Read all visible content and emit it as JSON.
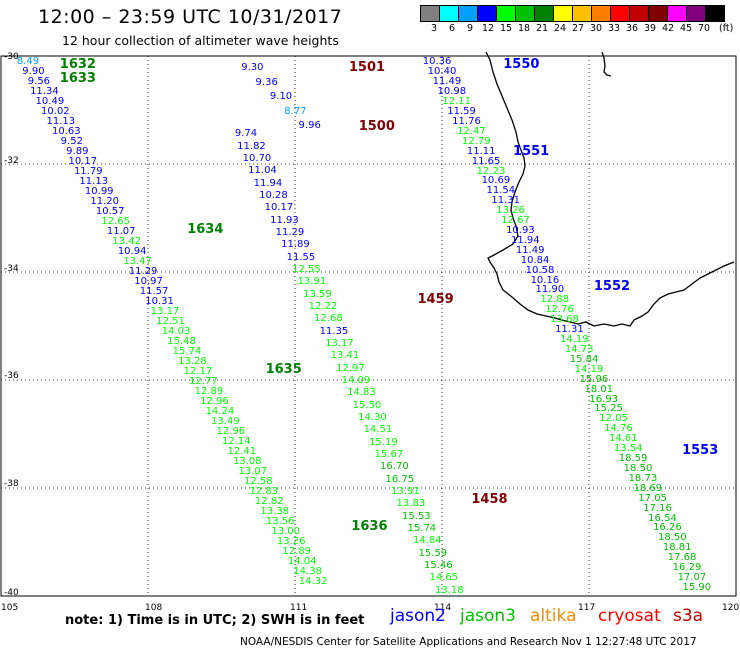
{
  "header": {
    "title": "12:00 – 23:59 UTC 10/31/2017",
    "subtitle": "12 hour collection of altimeter wave heights"
  },
  "legend": {
    "unit": "(ft)",
    "labels": [
      "3",
      "6",
      "9",
      "12",
      "15",
      "18",
      "21",
      "24",
      "27",
      "30",
      "33",
      "36",
      "39",
      "42",
      "45",
      "70"
    ],
    "colors": [
      "#808080",
      "#00ffff",
      "#00a0ff",
      "#0000ff",
      "#00ff00",
      "#00c000",
      "#008000",
      "#ffff00",
      "#ffc000",
      "#ff8000",
      "#ff0000",
      "#c00000",
      "#800000",
      "#ff00ff",
      "#800080",
      "#000000"
    ]
  },
  "axes": {
    "lat_labels": [
      "-30",
      "-32",
      "-34",
      "-36",
      "-38",
      "-40"
    ],
    "lon_labels": [
      "105",
      "108",
      "111",
      "114",
      "117",
      "120"
    ]
  },
  "note": "note:  1) Time is in UTC;  2) SWH is in feet",
  "satellites": [
    {
      "name": "jason2",
      "color": "#0000ff"
    },
    {
      "name": "jason3",
      "color": "#00c000"
    },
    {
      "name": "altika",
      "color": "#ff8c00"
    },
    {
      "name": "cryosat",
      "color": "#ff0000"
    },
    {
      "name": "s3a",
      "color": "#c00000"
    }
  ],
  "footer": "NOAA/NESDIS Center for Satellite Applications and Research    Nov  1 12:27:48 UTC 2017",
  "map_data": {
    "region": {
      "lon": [
        105,
        120
      ],
      "lat": [
        -40,
        -30
      ]
    },
    "orbit_labels": [
      {
        "label": "1632",
        "lon": 106.2,
        "lat": -30.15,
        "color": "#008000"
      },
      {
        "label": "1633",
        "lon": 106.2,
        "lat": -30.4,
        "color": "#008000"
      },
      {
        "label": "1634",
        "lon": 108.8,
        "lat": -33.2,
        "color": "#008000"
      },
      {
        "label": "1635",
        "lon": 110.4,
        "lat": -35.8,
        "color": "#008000"
      },
      {
        "label": "1636",
        "lon": 112.15,
        "lat": -38.7,
        "color": "#008000"
      },
      {
        "label": "1501",
        "lon": 112.1,
        "lat": -30.2,
        "color": "#800000"
      },
      {
        "label": "1500",
        "lon": 112.3,
        "lat": -31.3,
        "color": "#800000"
      },
      {
        "label": "1459",
        "lon": 113.5,
        "lat": -34.5,
        "color": "#800000"
      },
      {
        "label": "1458",
        "lon": 114.6,
        "lat": -38.2,
        "color": "#800000"
      },
      {
        "label": "1550",
        "lon": 115.25,
        "lat": -30.15,
        "color": "#0000ff"
      },
      {
        "label": "1551",
        "lon": 115.45,
        "lat": -31.75,
        "color": "#0000ff"
      },
      {
        "label": "1552",
        "lon": 117.1,
        "lat": -34.25,
        "color": "#0000ff"
      },
      {
        "label": "1553",
        "lon": 118.9,
        "lat": -37.3,
        "color": "#0000ff"
      }
    ],
    "tracks": [
      {
        "id": "jason3-1632",
        "start": [
          105.55,
          -30.12
        ],
        "end": [
          111.37,
          -39.74
        ],
        "values": [
          "8.49",
          "9.90",
          "9.56",
          "11.34",
          "10.49",
          "10.02",
          "11.13",
          "10.63",
          "9.52",
          "9.89",
          "10.17",
          "11.79",
          "11.13",
          "10.99",
          "11.20",
          "10.57",
          "12.65",
          "11.07",
          "13.42",
          "10.94",
          "13.47",
          "11.29",
          "10.97",
          "11.57",
          "10.31",
          "13.17",
          "12.51",
          "14.03",
          "15.48",
          "15.74",
          "13.28",
          "12.17",
          "12.77",
          "12.89",
          "12.96",
          "14.24",
          "13.49",
          "12.96",
          "12.14",
          "12.41",
          "13.08",
          "13.07",
          "12.58",
          "12.83",
          "12.82",
          "13.38",
          "13.56",
          "13.00",
          "13.26",
          "12.89",
          "14.04",
          "14.38",
          "14.32"
        ],
        "colors": [
          "#00a0ff",
          "#0000ff",
          "#0000ff",
          "#0000ff",
          "#0000ff",
          "#0000ff",
          "#0000ff",
          "#0000ff",
          "#0000ff",
          "#0000ff",
          "#0000ff",
          "#0000ff",
          "#0000ff",
          "#0000ff",
          "#0000ff",
          "#0000ff",
          "#00ff00",
          "#0000ff",
          "#00ff00",
          "#0000ff",
          "#00ff00",
          "#0000ff",
          "#0000ff",
          "#0000ff",
          "#0000ff",
          "#00ff00",
          "#00ff00",
          "#00ff00",
          "#00ff00",
          "#00ff00",
          "#00ff00",
          "#00ff00",
          "#00ff00",
          "#00ff00",
          "#00ff00",
          "#00ff00",
          "#00ff00",
          "#00ff00",
          "#00ff00",
          "#00ff00",
          "#00ff00",
          "#00ff00",
          "#00ff00",
          "#00ff00",
          "#00ff00",
          "#00ff00",
          "#00ff00",
          "#00ff00",
          "#00ff00",
          "#00ff00",
          "#00ff00",
          "#00ff00",
          "#00ff00"
        ]
      },
      {
        "id": "cryosat-1501",
        "start": [
          110.13,
          -30.23
        ],
        "end": [
          111.3,
          -31.3
        ],
        "values": [
          "9.30",
          "9.36",
          "9.10",
          "8.77",
          "9.96"
        ],
        "colors": [
          "#0000ff",
          "#0000ff",
          "#0000ff",
          "#00a0ff",
          "#0000ff"
        ]
      },
      {
        "id": "cryosat-1500",
        "start": [
          110.0,
          -31.45
        ],
        "end": [
          114.15,
          -39.9
        ],
        "values": [
          "9.74",
          "11.82",
          "10.70",
          "11.04",
          "11.94",
          "10.28",
          "10.17",
          "11.93",
          "11.29",
          "11.89",
          "11.55",
          "12.55",
          "13.91",
          "13.59",
          "12.22",
          "12.68",
          "11.35",
          "13.17",
          "13.41",
          "12.97",
          "14.09",
          "14.83",
          "15.50",
          "14.30",
          "14.51",
          "15.19",
          "15.67",
          "16.70",
          "16.75",
          "13.91",
          "13.83",
          "15.53",
          "15.74",
          "14.84",
          "15.59",
          "15.46",
          "14.65",
          "13.18"
        ],
        "colors": [
          "#0000ff",
          "#0000ff",
          "#0000ff",
          "#0000ff",
          "#0000ff",
          "#0000ff",
          "#0000ff",
          "#0000ff",
          "#0000ff",
          "#0000ff",
          "#0000ff",
          "#00ff00",
          "#00ff00",
          "#00ff00",
          "#00ff00",
          "#00ff00",
          "#0000ff",
          "#00ff00",
          "#00ff00",
          "#00ff00",
          "#00ff00",
          "#00ff00",
          "#00ff00",
          "#00ff00",
          "#00ff00",
          "#00ff00",
          "#00ff00",
          "#00c000",
          "#00c000",
          "#00ff00",
          "#00ff00",
          "#00c000",
          "#00c000",
          "#00ff00",
          "#00c000",
          "#00c000",
          "#00ff00",
          "#00ff00"
        ]
      },
      {
        "id": "jason2-1550",
        "start": [
          113.9,
          -30.12
        ],
        "end": [
          119.2,
          -39.85
        ],
        "values": [
          "10.36",
          "10.40",
          "11.49",
          "10.98",
          "12.11",
          "11.59",
          "11.76",
          "12.47",
          "12.79",
          "11.11",
          "11.65",
          "12.23",
          "10.69",
          "11.54",
          "11.31",
          "13.26",
          "12.67",
          "10.93",
          "11.94",
          "11.49",
          "10.84",
          "10.58",
          "10.16",
          "11.90",
          "12.88",
          "12.76",
          "13.68",
          "11.31",
          "14.19",
          "14.73",
          "15.84",
          "14.19",
          "15.96",
          "18.01",
          "16.93",
          "15.25",
          "12.05",
          "14.76",
          "14.61",
          "13.54",
          "18.59",
          "18.50",
          "18.73",
          "18.69",
          "17.05",
          "17.16",
          "16.54",
          "16.26",
          "18.50",
          "18.81",
          "17.68",
          "16.29",
          "17.07",
          "15.90"
        ],
        "colors": [
          "#0000ff",
          "#0000ff",
          "#0000ff",
          "#0000ff",
          "#00ff00",
          "#0000ff",
          "#0000ff",
          "#00ff00",
          "#00ff00",
          "#0000ff",
          "#0000ff",
          "#00ff00",
          "#0000ff",
          "#0000ff",
          "#0000ff",
          "#00ff00",
          "#00ff00",
          "#0000ff",
          "#0000ff",
          "#0000ff",
          "#0000ff",
          "#0000ff",
          "#0000ff",
          "#0000ff",
          "#00ff00",
          "#00ff00",
          "#00ff00",
          "#0000ff",
          "#00ff00",
          "#00ff00",
          "#00c000",
          "#00ff00",
          "#00c000",
          "#00c000",
          "#00c000",
          "#00c000",
          "#00ff00",
          "#00ff00",
          "#00ff00",
          "#00ff00",
          "#00c000",
          "#00c000",
          "#00c000",
          "#00c000",
          "#00c000",
          "#00c000",
          "#00c000",
          "#00c000",
          "#00c000",
          "#00c000",
          "#00c000",
          "#00c000",
          "#00c000",
          "#00c000"
        ]
      }
    ]
  }
}
